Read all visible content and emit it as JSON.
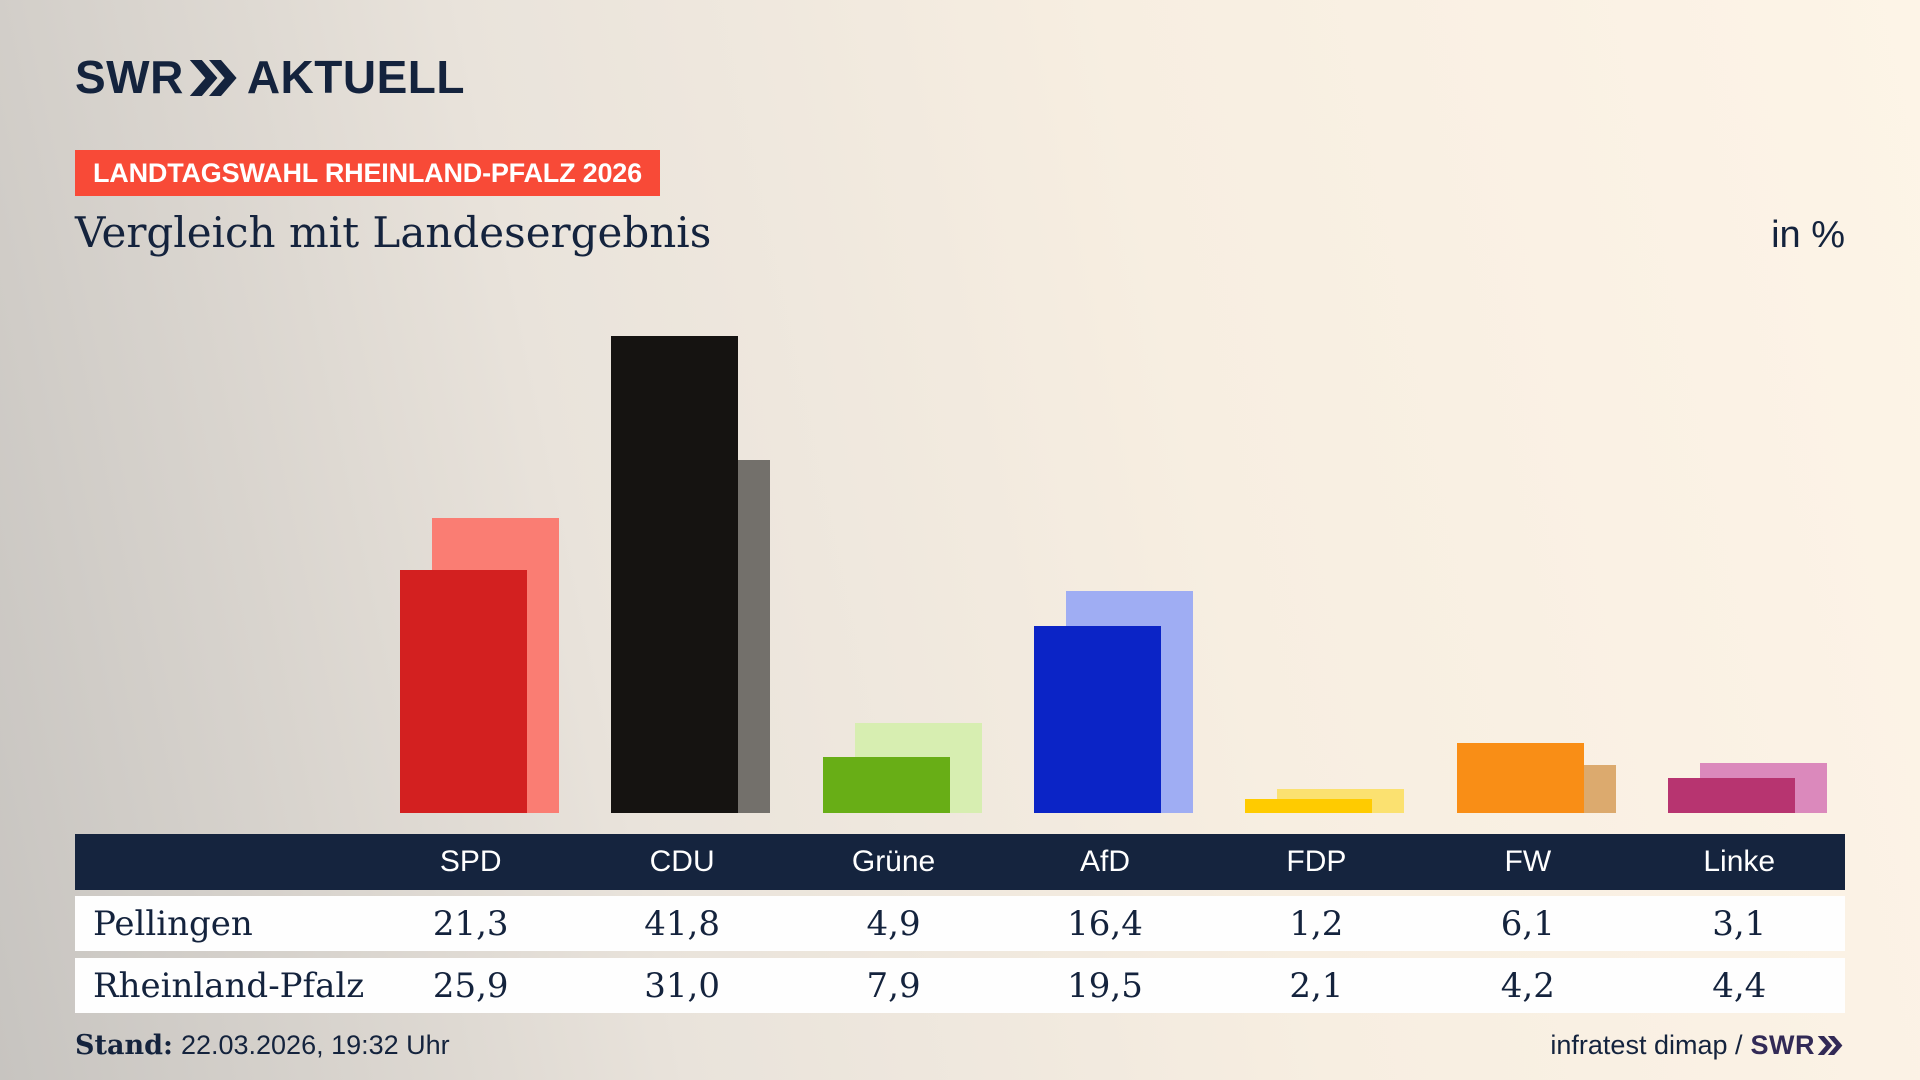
{
  "header": {
    "logo_brand": "SWR",
    "logo_product": "AKTUELL",
    "badge": "LANDTAGSWAHL RHEINLAND-PFALZ 2026",
    "title": "Vergleich mit Landesergebnis",
    "unit_label": "in %"
  },
  "chart_data": {
    "type": "bar",
    "title": "Vergleich mit Landesergebnis",
    "unit": "in %",
    "categories": [
      "SPD",
      "CDU",
      "Grüne",
      "AfD",
      "FDP",
      "FW",
      "Linke"
    ],
    "series": [
      {
        "name": "Pellingen",
        "values": [
          21.3,
          41.8,
          4.9,
          16.4,
          1.2,
          6.1,
          3.1
        ],
        "colors": [
          "#d32020",
          "#151311",
          "#68ae16",
          "#0b24c6",
          "#ffcb00",
          "#f98e16",
          "#b73470"
        ]
      },
      {
        "name": "Rheinland-Pfalz",
        "values": [
          25.9,
          31.0,
          7.9,
          19.5,
          2.1,
          4.2,
          4.4
        ],
        "colors": [
          "#fa7d73",
          "#73706b",
          "#d7eeb1",
          "#9fadf3",
          "#fbe170",
          "#dcaa6e",
          "#db89bc"
        ]
      }
    ],
    "ylim": [
      0,
      42
    ],
    "grid": false,
    "legend_position": "none (values shown in table below)"
  },
  "table": {
    "columns": [
      "SPD",
      "CDU",
      "Grüne",
      "AfD",
      "FDP",
      "FW",
      "Linke"
    ],
    "rows": [
      {
        "label": "Pellingen",
        "values": [
          "21,3",
          "41,8",
          "4,9",
          "16,4",
          "1,2",
          "6,1",
          "3,1"
        ]
      },
      {
        "label": "Rheinland-Pfalz",
        "values": [
          "25,9",
          "31,0",
          "7,9",
          "19,5",
          "2,1",
          "4,2",
          "4,4"
        ]
      }
    ]
  },
  "footer": {
    "stand_label": "Stand:",
    "stand_value": "22.03.2026, 19:32 Uhr",
    "source_text": "infratest dimap /",
    "source_brand": "SWR"
  },
  "colors": {
    "navy": "#14233d",
    "table_header_bg": "#15243e",
    "badge_bg": "#f84a37",
    "badge_text": "#ffffff",
    "row_bg": "#fefefe",
    "background_light": "#fdf4e7",
    "background_dark": "#c7c4c0",
    "footer_brand": "#322a56"
  }
}
